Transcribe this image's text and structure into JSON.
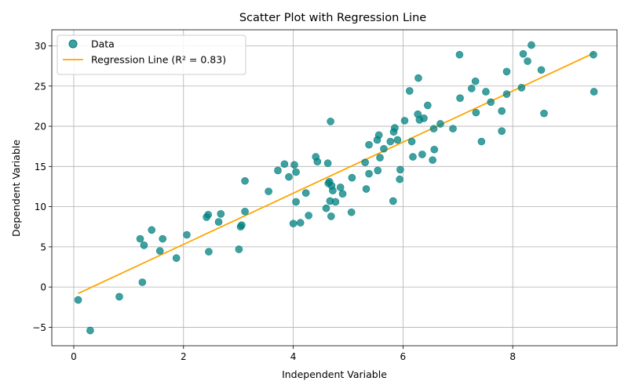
{
  "chart_data": {
    "type": "scatter",
    "title": "Scatter Plot with Regression Line",
    "xlabel": "Independent Variable",
    "ylabel": "Dependent Variable",
    "xlim": [
      -0.4,
      9.9
    ],
    "ylim": [
      -7.3,
      32
    ],
    "x_ticks": [
      0,
      2,
      4,
      6,
      8
    ],
    "x_tick_labels": [
      "0",
      "2",
      "4",
      "6",
      "8"
    ],
    "y_ticks": [
      -5,
      0,
      5,
      10,
      15,
      20,
      25,
      30
    ],
    "y_tick_labels": [
      "−5",
      "0",
      "5",
      "10",
      "15",
      "20",
      "25",
      "30"
    ],
    "grid": true,
    "legend_position": "top-left",
    "series": [
      {
        "name": "Data",
        "kind": "scatter",
        "color": "#008080",
        "points": [
          [
            0.08,
            -1.6
          ],
          [
            0.3,
            -5.4
          ],
          [
            0.83,
            -1.2
          ],
          [
            1.21,
            6.0
          ],
          [
            1.25,
            0.6
          ],
          [
            1.28,
            5.2
          ],
          [
            1.42,
            7.1
          ],
          [
            1.57,
            4.5
          ],
          [
            1.62,
            6.0
          ],
          [
            1.87,
            3.6
          ],
          [
            2.06,
            6.5
          ],
          [
            2.42,
            8.7
          ],
          [
            2.45,
            9.0
          ],
          [
            2.46,
            4.4
          ],
          [
            2.64,
            8.1
          ],
          [
            2.68,
            9.1
          ],
          [
            3.01,
            4.7
          ],
          [
            3.04,
            7.5
          ],
          [
            3.06,
            7.7
          ],
          [
            3.12,
            9.4
          ],
          [
            3.12,
            13.2
          ],
          [
            3.55,
            11.9
          ],
          [
            3.72,
            14.5
          ],
          [
            3.84,
            15.3
          ],
          [
            3.92,
            13.7
          ],
          [
            4.0,
            7.9
          ],
          [
            4.02,
            15.2
          ],
          [
            4.05,
            10.6
          ],
          [
            4.05,
            14.3
          ],
          [
            4.13,
            8.0
          ],
          [
            4.23,
            11.7
          ],
          [
            4.28,
            8.9
          ],
          [
            4.41,
            16.2
          ],
          [
            4.44,
            15.6
          ],
          [
            4.6,
            9.8
          ],
          [
            4.63,
            15.4
          ],
          [
            4.64,
            12.9
          ],
          [
            4.66,
            13.1
          ],
          [
            4.67,
            10.7
          ],
          [
            4.68,
            20.6
          ],
          [
            4.69,
            8.8
          ],
          [
            4.7,
            12.6
          ],
          [
            4.72,
            12.0
          ],
          [
            4.77,
            10.6
          ],
          [
            4.86,
            12.4
          ],
          [
            4.9,
            11.6
          ],
          [
            5.06,
            9.3
          ],
          [
            5.07,
            13.6
          ],
          [
            5.31,
            15.5
          ],
          [
            5.33,
            12.2
          ],
          [
            5.38,
            17.7
          ],
          [
            5.38,
            14.1
          ],
          [
            5.53,
            18.3
          ],
          [
            5.54,
            14.5
          ],
          [
            5.56,
            18.9
          ],
          [
            5.58,
            16.1
          ],
          [
            5.65,
            17.2
          ],
          [
            5.77,
            18.1
          ],
          [
            5.82,
            10.7
          ],
          [
            5.83,
            19.3
          ],
          [
            5.85,
            19.8
          ],
          [
            5.9,
            18.3
          ],
          [
            5.94,
            13.4
          ],
          [
            5.95,
            14.6
          ],
          [
            6.03,
            20.7
          ],
          [
            6.12,
            24.4
          ],
          [
            6.16,
            18.1
          ],
          [
            6.18,
            16.2
          ],
          [
            6.27,
            21.5
          ],
          [
            6.28,
            26.0
          ],
          [
            6.3,
            20.8
          ],
          [
            6.35,
            16.5
          ],
          [
            6.38,
            21.0
          ],
          [
            6.45,
            22.6
          ],
          [
            6.54,
            15.8
          ],
          [
            6.56,
            19.7
          ],
          [
            6.57,
            17.1
          ],
          [
            6.68,
            20.3
          ],
          [
            6.91,
            19.7
          ],
          [
            7.03,
            28.9
          ],
          [
            7.04,
            23.5
          ],
          [
            7.25,
            24.7
          ],
          [
            7.32,
            25.6
          ],
          [
            7.33,
            21.7
          ],
          [
            7.43,
            18.1
          ],
          [
            7.51,
            24.3
          ],
          [
            7.6,
            23.0
          ],
          [
            7.8,
            21.9
          ],
          [
            7.8,
            19.4
          ],
          [
            7.89,
            26.8
          ],
          [
            7.89,
            24.0
          ],
          [
            8.16,
            24.8
          ],
          [
            8.19,
            29.0
          ],
          [
            8.27,
            28.1
          ],
          [
            8.34,
            30.1
          ],
          [
            8.52,
            27.0
          ],
          [
            8.57,
            21.6
          ],
          [
            9.47,
            28.9
          ],
          [
            9.48,
            24.3
          ]
        ]
      },
      {
        "name": "Regression Line (R² = 0.83)",
        "kind": "line",
        "color": "#FFA500",
        "x": [
          0.08,
          9.48
        ],
        "y": [
          -0.8,
          29.1
        ]
      }
    ]
  }
}
